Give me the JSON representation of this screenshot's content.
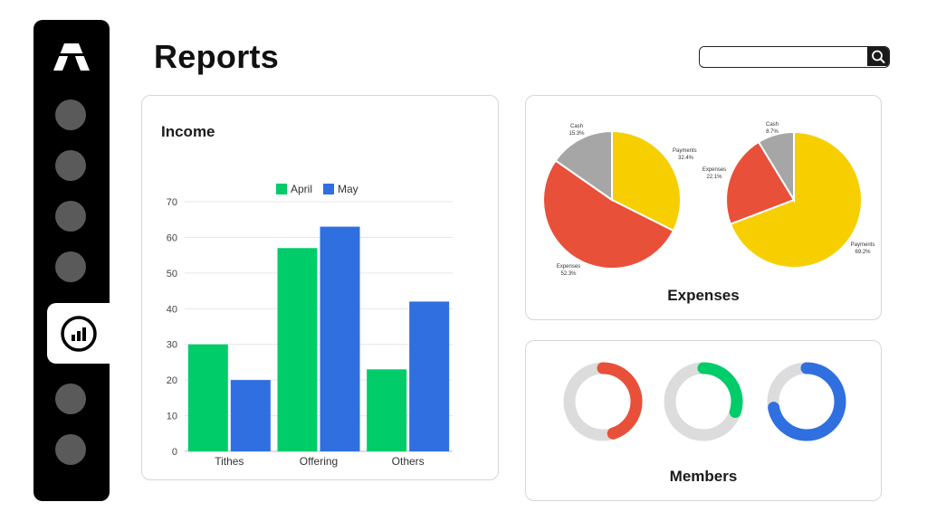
{
  "header": {
    "title": "Reports",
    "search": {
      "value": "",
      "placeholder": ""
    }
  },
  "sidebar": {
    "items": [
      {
        "icon": "nav-dot",
        "active": false
      },
      {
        "icon": "nav-dot",
        "active": false
      },
      {
        "icon": "nav-dot",
        "active": false
      },
      {
        "icon": "nav-dot",
        "active": false
      },
      {
        "icon": "bar-chart-icon",
        "active": true
      },
      {
        "icon": "nav-dot",
        "active": false
      },
      {
        "icon": "nav-dot",
        "active": false
      }
    ]
  },
  "colors": {
    "april": "#00cc6a",
    "may": "#2f6fe0",
    "payments": "#f7cf00",
    "expenses": "#e8503a",
    "cash": "#a6a6a6",
    "track": "#dcdcdc"
  },
  "income": {
    "title": "Income",
    "legend": [
      "April",
      "May"
    ]
  },
  "expenses": {
    "title": "Expenses",
    "pies": [
      {
        "slices": [
          {
            "label": "Payments",
            "value": "32.4%"
          },
          {
            "label": "Expenses",
            "value": "52.3%"
          },
          {
            "label": "Cash",
            "value": "15.3%"
          }
        ]
      },
      {
        "slices": [
          {
            "label": "Payments",
            "value": "69.2%"
          },
          {
            "label": "Expenses",
            "value": "22.1%"
          },
          {
            "label": "Cash",
            "value": "8.7%"
          }
        ]
      }
    ]
  },
  "members": {
    "title": "Members",
    "donuts": [
      {
        "color": "#e8503a",
        "fraction": 0.45
      },
      {
        "color": "#00cc6a",
        "fraction": 0.3
      },
      {
        "color": "#2f6fe0",
        "fraction": 0.72
      }
    ]
  },
  "chart_data": [
    {
      "type": "bar",
      "title": "Income",
      "categories": [
        "Tithes",
        "Offering",
        "Others"
      ],
      "series": [
        {
          "name": "April",
          "values": [
            30,
            57,
            23
          ]
        },
        {
          "name": "May",
          "values": [
            20,
            63,
            42
          ]
        }
      ],
      "yticks": [
        0,
        10,
        20,
        30,
        40,
        50,
        60,
        70
      ],
      "ylim": [
        0,
        70
      ],
      "grid": true,
      "legend": "top"
    },
    {
      "type": "pie",
      "slices": [
        {
          "label": "Payments",
          "value": 32.4
        },
        {
          "label": "Expenses",
          "value": 52.3
        },
        {
          "label": "Cash",
          "value": 15.3
        }
      ]
    },
    {
      "type": "pie",
      "slices": [
        {
          "label": "Payments",
          "value": 69.2
        },
        {
          "label": "Expenses",
          "value": 22.1
        },
        {
          "label": "Cash",
          "value": 8.7
        }
      ]
    }
  ]
}
